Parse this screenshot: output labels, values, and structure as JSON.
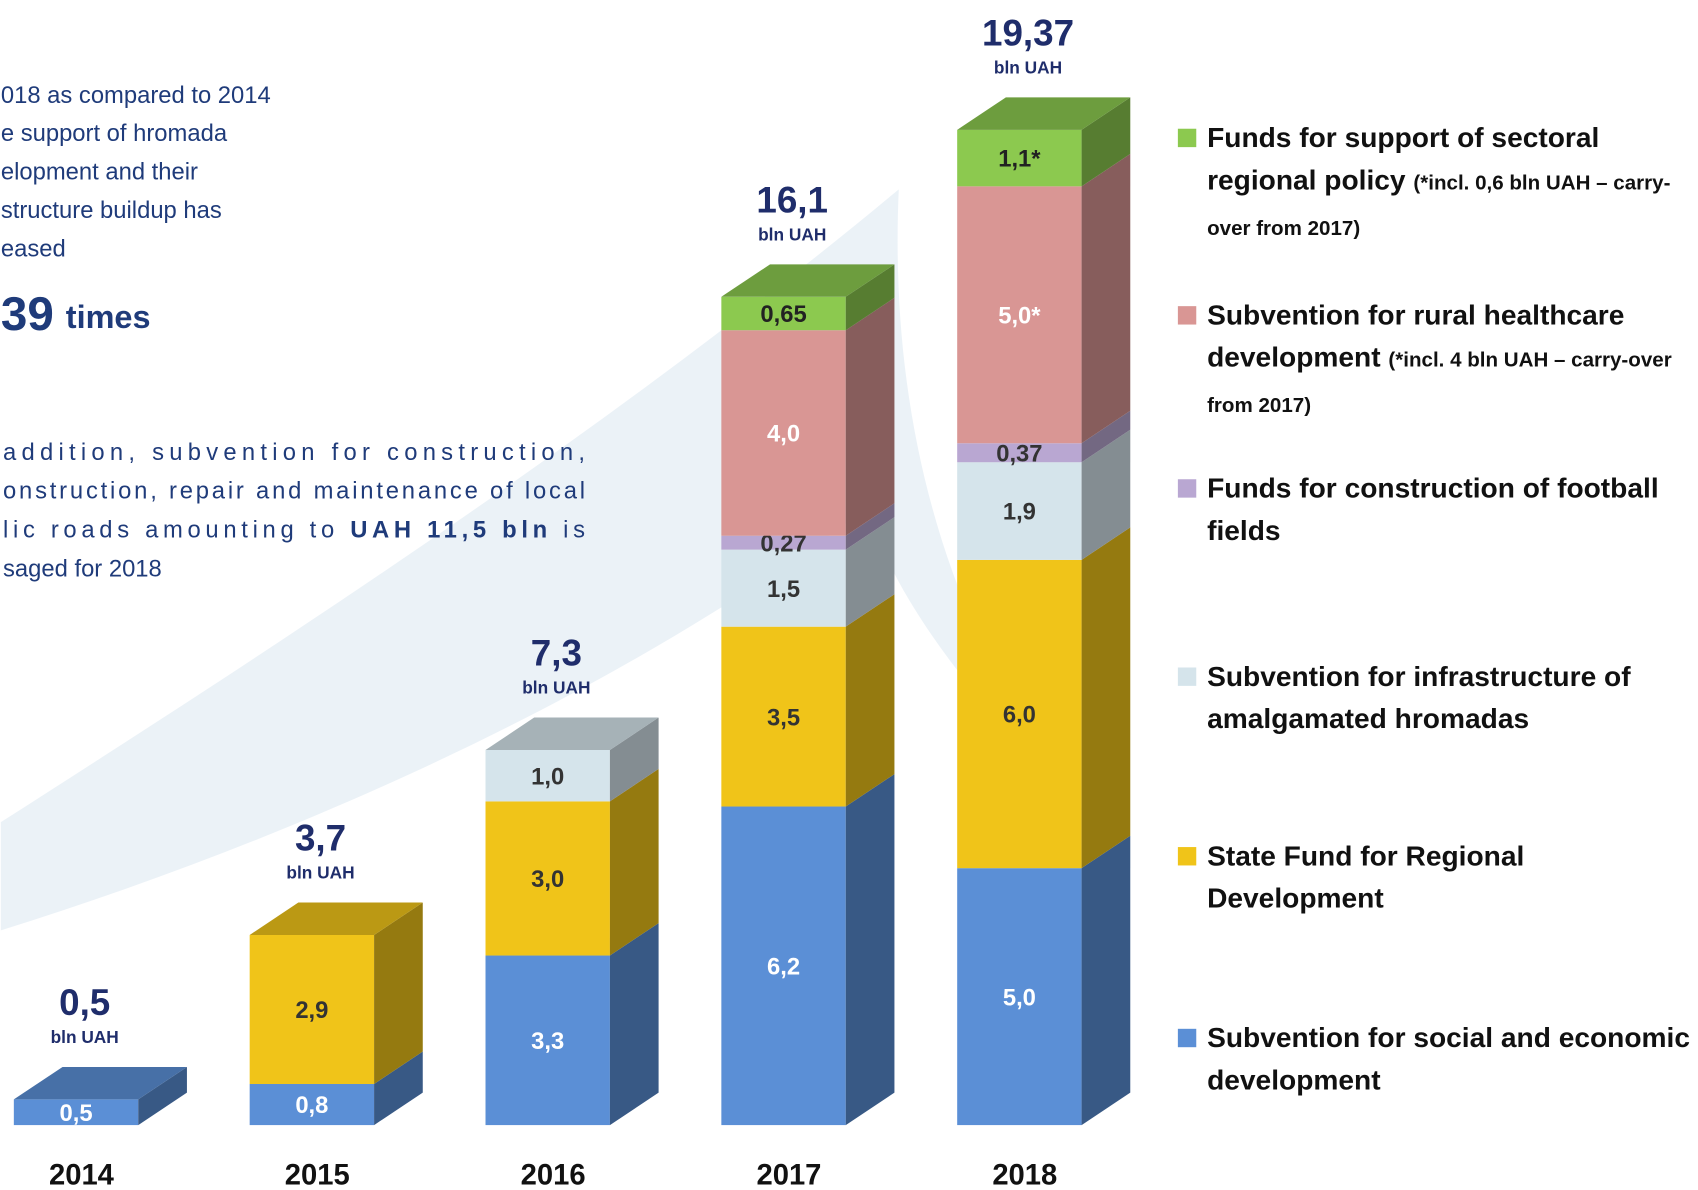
{
  "chart_data": {
    "type": "bar3d_stacked",
    "categories": [
      "2014",
      "2015",
      "2016",
      "2017",
      "2018"
    ],
    "totals": [
      0.5,
      3.7,
      7.3,
      16.1,
      19.37
    ],
    "totals_labels": [
      "0,5",
      "3,7",
      "7,3",
      "16,1",
      "19,37"
    ],
    "unit": "bln UAH",
    "series": [
      {
        "name": "Subvention for social and economic development",
        "color": "#5b8fd6",
        "label_color": "#ffffff",
        "values": [
          0.5,
          0.8,
          3.3,
          6.2,
          5.0
        ],
        "value_labels": [
          "0,5",
          "0,8",
          "3,3",
          "6,2",
          "5,0"
        ]
      },
      {
        "name": "State Fund for Regional Development",
        "color": "#f0c419",
        "label_color": "#333333",
        "values": [
          null,
          2.9,
          3.0,
          3.5,
          6.0
        ],
        "value_labels": [
          null,
          "2,9",
          "3,0",
          "3,5",
          "6,0"
        ]
      },
      {
        "name": "Subvention for infrastructure of amalgamated hromadas",
        "color": "#d5e4eb",
        "label_color": "#333333",
        "values": [
          null,
          null,
          1.0,
          1.5,
          1.9
        ],
        "value_labels": [
          null,
          null,
          "1,0",
          "1,5",
          "1,9"
        ]
      },
      {
        "name": "Funds for construction of football fields",
        "color": "#b9a7d2",
        "label_color": "#333333",
        "values": [
          null,
          null,
          null,
          0.27,
          0.37
        ],
        "value_labels": [
          null,
          null,
          null,
          "0,27",
          "0,37"
        ]
      },
      {
        "name": "Subvention for rural healthcare development",
        "note": "(*incl. 4 bln UAH – carry-over from 2017)",
        "color": "#d99694",
        "label_color": "#ffffff",
        "values": [
          null,
          null,
          null,
          4.0,
          5.0
        ],
        "value_labels": [
          null,
          null,
          null,
          "4,0",
          "5,0*"
        ]
      },
      {
        "name": "Funds for support of sectoral regional policy",
        "note": "(*incl. 0,6 bln UAH – carry-over from 2017)",
        "color": "#8cc94f",
        "label_color": "#222222",
        "values": [
          null,
          null,
          null,
          0.65,
          1.1
        ],
        "value_labels": [
          null,
          null,
          null,
          "0,65",
          "1,1*"
        ]
      }
    ]
  },
  "text": {
    "intro_lines": [
      "018 as compared to 2014",
      "e support of hromada",
      "elopment and their",
      "structure buildup has",
      "eased"
    ],
    "factor": "39",
    "factor_word": "times",
    "para_lines": [
      "addition,  subvention  for  construction,",
      "onstruction, repair and maintenance of local"
    ],
    "para_line3_a": "lic roads amounting to ",
    "para_line3_b": "UAH 11,5 bln",
    "para_line3_c": " is",
    "para_line4": "saged for 2018"
  }
}
